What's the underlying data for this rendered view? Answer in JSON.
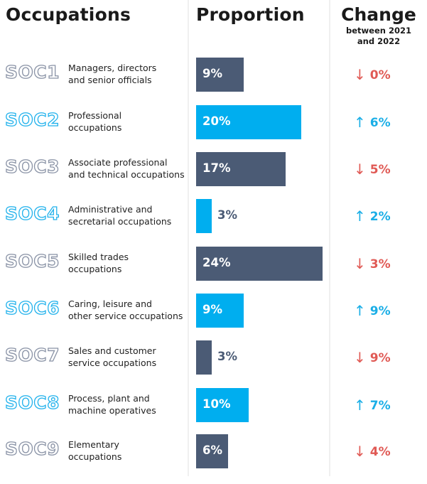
{
  "headers": {
    "occupations": "Occupations",
    "proportion": "Proportion",
    "change": "Change",
    "change_sub_1": "between 2021",
    "change_sub_2": "and 2022"
  },
  "colors": {
    "dark_bar": "#4b5b75",
    "blue_bar": "#00aeef",
    "up": "#1aaee6",
    "down": "#e05a55"
  },
  "icons": {
    "up": "↑",
    "down": "↓"
  },
  "rows": [
    {
      "code": "SOC1",
      "line1": "Managers, directors",
      "line2": "and senior officials",
      "proportion": "9%",
      "direction": "down",
      "change": "0%",
      "color": "dark"
    },
    {
      "code": "SOC2",
      "line1": "Professional",
      "line2": "occupations",
      "proportion": "20%",
      "direction": "up",
      "change": "6%",
      "color": "blue"
    },
    {
      "code": "SOC3",
      "line1": "Associate professional",
      "line2": "and technical occupations",
      "proportion": "17%",
      "direction": "down",
      "change": "5%",
      "color": "dark"
    },
    {
      "code": "SOC4",
      "line1": "Administrative and",
      "line2": "secretarial occupations",
      "proportion": "3%",
      "direction": "up",
      "change": "2%",
      "color": "blue"
    },
    {
      "code": "SOC5",
      "line1": "Skilled trades",
      "line2": "occupations",
      "proportion": "24%",
      "direction": "down",
      "change": "3%",
      "color": "dark"
    },
    {
      "code": "SOC6",
      "line1": "Caring, leisure and",
      "line2": "other service occupations",
      "proportion": "9%",
      "direction": "up",
      "change": "9%",
      "color": "blue"
    },
    {
      "code": "SOC7",
      "line1": "Sales and customer",
      "line2": "service occupations",
      "proportion": "3%",
      "direction": "down",
      "change": "9%",
      "color": "dark"
    },
    {
      "code": "SOC8",
      "line1": "Process, plant and",
      "line2": "machine operatives",
      "proportion": "10%",
      "direction": "up",
      "change": "7%",
      "color": "blue"
    },
    {
      "code": "SOC9",
      "line1": "Elementary",
      "line2": "occupations",
      "proportion": "6%",
      "direction": "down",
      "change": "4%",
      "color": "dark"
    }
  ],
  "chart_data": {
    "type": "bar",
    "orientation": "horizontal",
    "title": "Occupations — Proportion and Change between 2021 and 2022",
    "categories": [
      "SOC1 Managers, directors and senior officials",
      "SOC2 Professional occupations",
      "SOC3 Associate professional and technical occupations",
      "SOC4 Administrative and secretarial occupations",
      "SOC5 Skilled trades occupations",
      "SOC6 Caring, leisure and other service occupations",
      "SOC7 Sales and customer service occupations",
      "SOC8 Process, plant and machine operatives",
      "SOC9 Elementary occupations"
    ],
    "series": [
      {
        "name": "Proportion (%)",
        "values": [
          9,
          20,
          17,
          3,
          24,
          9,
          3,
          10,
          6
        ]
      },
      {
        "name": "Change between 2021 and 2022 (%)",
        "values": [
          0,
          6,
          -5,
          2,
          -3,
          9,
          -9,
          7,
          -4
        ]
      }
    ],
    "change_direction": [
      "down",
      "up",
      "down",
      "up",
      "down",
      "up",
      "down",
      "up",
      "down"
    ],
    "xlabel": "Proportion",
    "ylabel": "Occupations",
    "xlim": [
      0,
      24
    ],
    "grid": false,
    "legend": "none"
  }
}
